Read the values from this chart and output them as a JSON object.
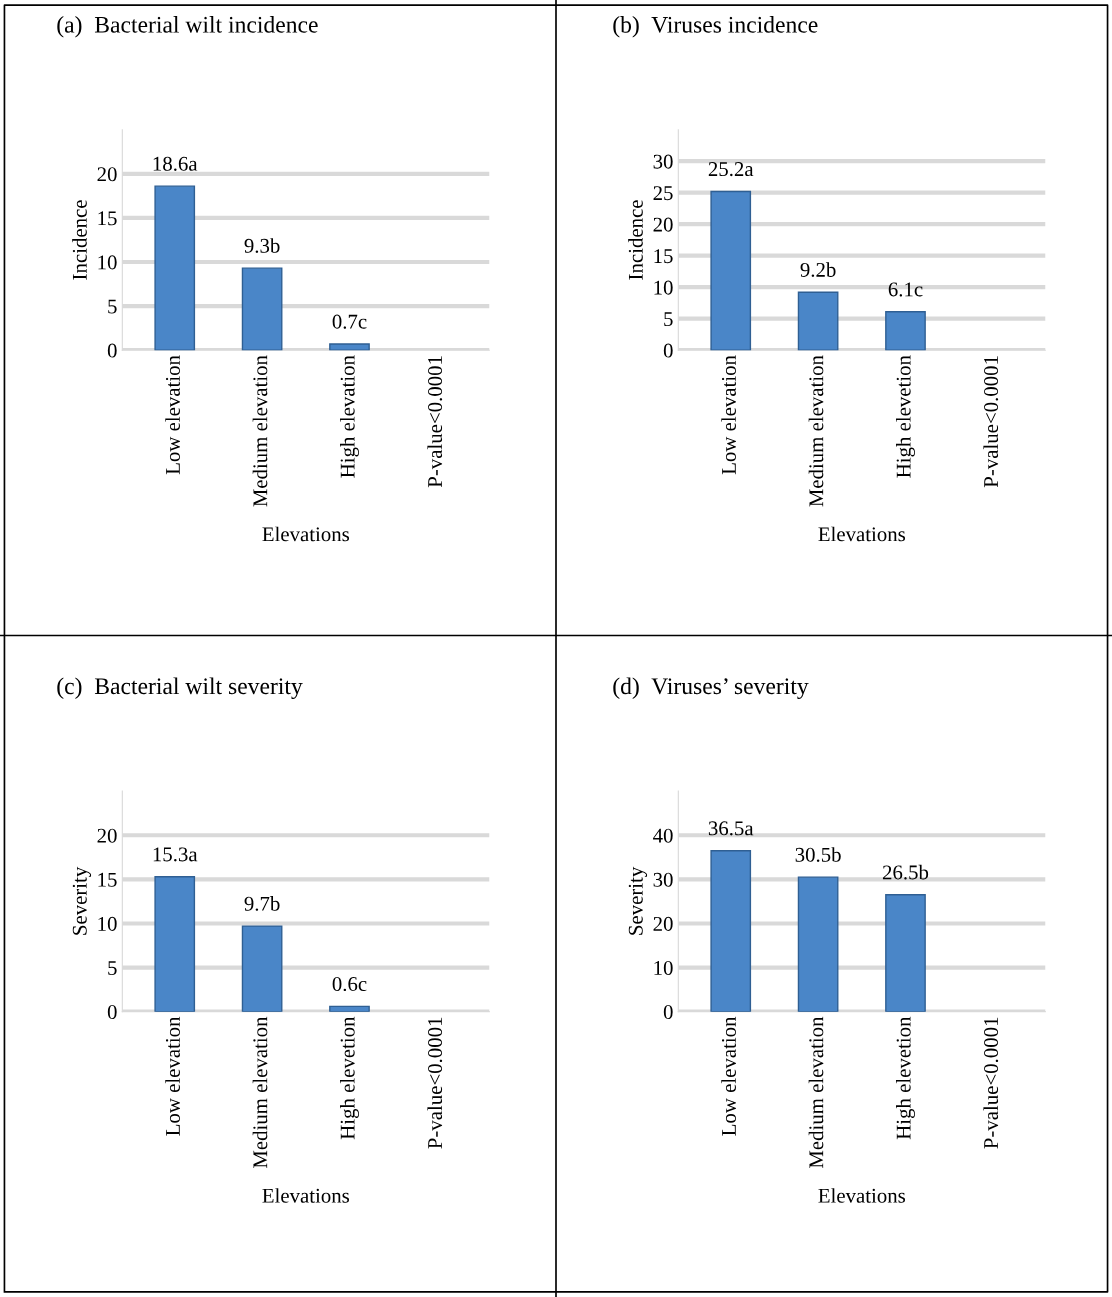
{
  "chart_data": [
    {
      "type": "bar",
      "title": "(a)  Bacterial wilt incidence",
      "xlabel": "Elevations",
      "ylabel": "Incidence",
      "categories": [
        "Low elevation",
        "Medium elevation",
        "High elevation",
        "P-value<0.0001"
      ],
      "values": [
        18.6,
        9.3,
        0.7,
        null
      ],
      "value_labels": [
        "18.6a",
        "9.3b",
        "0.7c",
        null
      ],
      "color": "#4a86c8",
      "ylim": [
        0,
        25
      ],
      "yticks": [
        0,
        5,
        10,
        15,
        20
      ],
      "grid": "y",
      "legend": false
    },
    {
      "type": "bar",
      "title": "(b)  Viruses incidence",
      "xlabel": "Elevations",
      "ylabel": "Incidence",
      "categories": [
        "Low elevation",
        "Medium elevation",
        "High elevetion",
        "P-value<0.0001"
      ],
      "values": [
        25.2,
        9.2,
        6.1,
        null
      ],
      "value_labels": [
        "25.2a",
        "9.2b",
        "6.1c",
        null
      ],
      "color": "#4a86c8",
      "ylim": [
        0,
        35
      ],
      "yticks": [
        0,
        5,
        10,
        15,
        20,
        25,
        30
      ],
      "grid": "y",
      "legend": false
    },
    {
      "type": "bar",
      "title": "(c)  Bacterial wilt severity",
      "xlabel": "Elevations",
      "ylabel": "Severity",
      "categories": [
        "Low elevation",
        "Medium elevation",
        "High elevetion",
        "P-value<0.0001"
      ],
      "values": [
        15.3,
        9.7,
        0.6,
        null
      ],
      "value_labels": [
        "15.3a",
        "9.7b",
        "0.6c",
        null
      ],
      "color": "#4a86c8",
      "ylim": [
        0,
        25
      ],
      "yticks": [
        0,
        5,
        10,
        15,
        20
      ],
      "grid": "y",
      "legend": false
    },
    {
      "type": "bar",
      "title": "(d)  Viruses’ severity",
      "xlabel": "Elevations",
      "ylabel": "Severity",
      "categories": [
        "Low elevation",
        "Medium elevation",
        "High elevetion",
        "P-value<0.0001"
      ],
      "values": [
        36.5,
        30.5,
        26.5,
        null
      ],
      "value_labels": [
        "36.5a",
        "30.5b",
        "26.5b",
        null
      ],
      "color": "#4a86c8",
      "ylim": [
        0,
        50
      ],
      "yticks": [
        0,
        10,
        20,
        30,
        40
      ],
      "grid": "y",
      "legend": false
    }
  ]
}
